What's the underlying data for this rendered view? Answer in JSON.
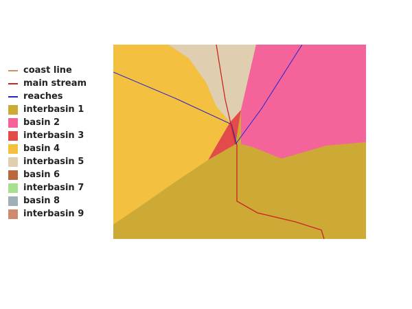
{
  "legend": [
    {
      "label": "coast line",
      "kind": "line",
      "color": "#c8906a"
    },
    {
      "label": "main stream",
      "kind": "line",
      "color": "#cc2222"
    },
    {
      "label": "reaches",
      "kind": "line",
      "color": "#2222cc"
    },
    {
      "label": "interbasin 1",
      "kind": "patch",
      "color": "#cda935"
    },
    {
      "label": "basin 2",
      "kind": "patch",
      "color": "#f4649a"
    },
    {
      "label": "interbasin 3",
      "kind": "patch",
      "color": "#e34b4b"
    },
    {
      "label": "basin 4",
      "kind": "patch",
      "color": "#f4c040"
    },
    {
      "label": "interbasin 5",
      "kind": "patch",
      "color": "#dfcfb0"
    },
    {
      "label": "basin 6",
      "kind": "patch",
      "color": "#b86a3e"
    },
    {
      "label": "interbasin 7",
      "kind": "patch",
      "color": "#a7e08f"
    },
    {
      "label": "basin 8",
      "kind": "patch",
      "color": "#9fb0b8"
    },
    {
      "label": "interbasin 9",
      "kind": "patch",
      "color": "#cc8a6f"
    }
  ]
}
